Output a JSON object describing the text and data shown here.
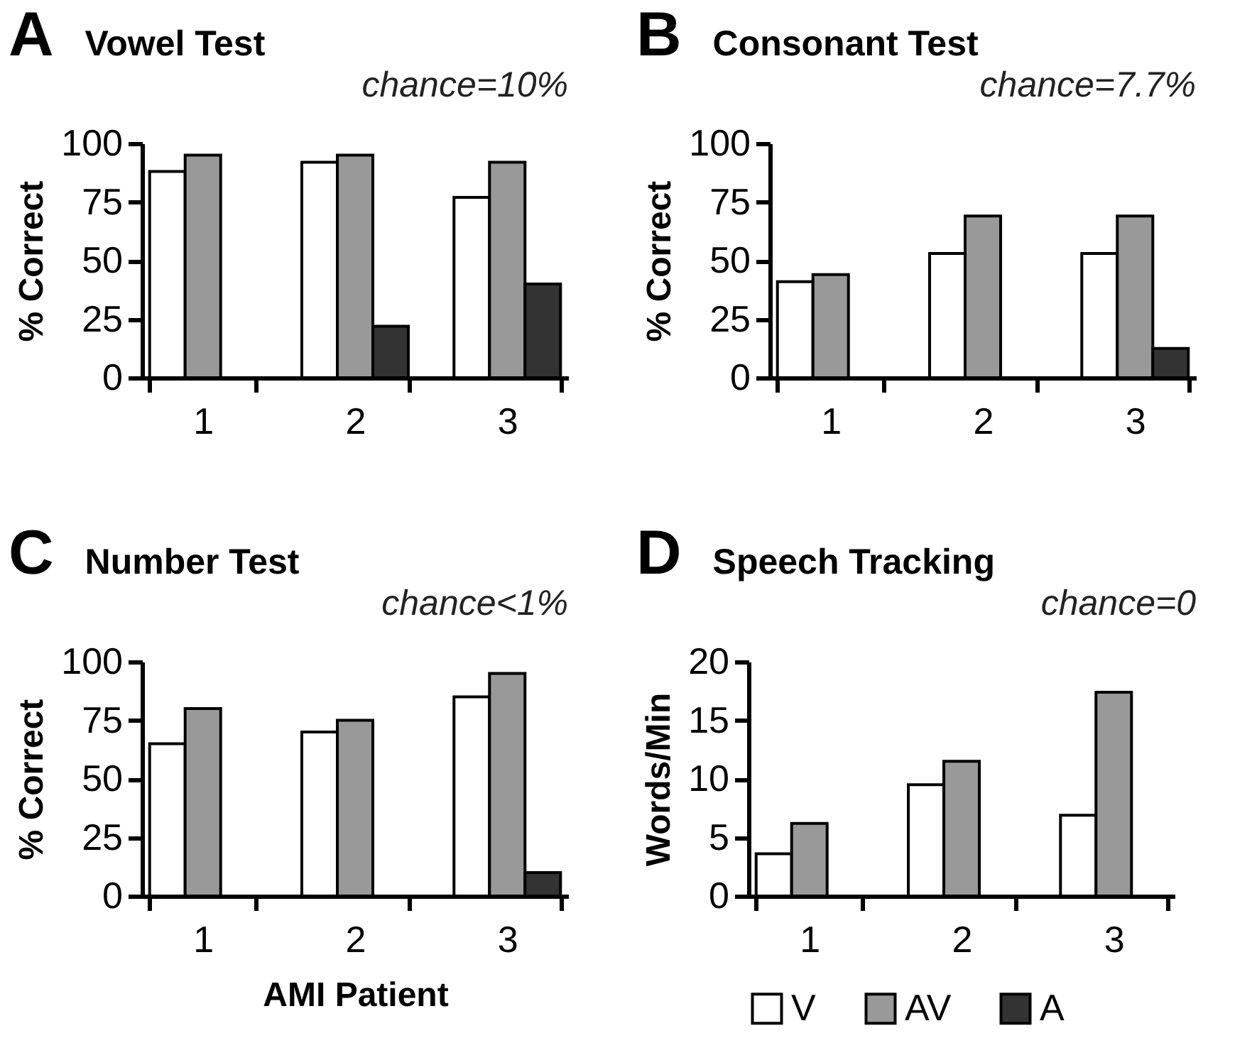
{
  "chart_data": [
    {
      "type": "bar",
      "title": "Vowel Test",
      "subtitle": "chance=10%",
      "annotations": [
        "A"
      ],
      "ylabel": "% Correct",
      "categories": [
        "1",
        "2",
        "3"
      ],
      "ylim": [
        0,
        100
      ],
      "yticks": [
        0,
        25,
        50,
        75,
        100
      ],
      "grid": false,
      "legend": false,
      "series": [
        {
          "color": "#ffffff",
          "values": [
            88,
            92,
            77
          ]
        },
        {
          "color": "#999999",
          "values": [
            95,
            95,
            92
          ]
        },
        {
          "color": "#333333",
          "values": [
            null,
            22,
            40
          ]
        }
      ]
    },
    {
      "type": "bar",
      "title": "Consonant Test",
      "subtitle": "chance=7.7%",
      "annotations": [
        "B"
      ],
      "ylabel": "% Correct",
      "categories": [
        "1",
        "2",
        "3"
      ],
      "ylim": [
        0,
        100
      ],
      "yticks": [
        0,
        25,
        50,
        75,
        100
      ],
      "grid": false,
      "legend": false,
      "series": [
        {
          "color": "#ffffff",
          "values": [
            41,
            53,
            53
          ]
        },
        {
          "color": "#999999",
          "values": [
            44,
            69,
            69
          ]
        },
        {
          "color": "#333333",
          "values": [
            null,
            null,
            12.5
          ]
        }
      ]
    },
    {
      "type": "bar",
      "title": "Number Test",
      "subtitle": "chance<1%",
      "annotations": [
        "C"
      ],
      "ylabel": "% Correct",
      "xlabel": "AMI Patient",
      "categories": [
        "1",
        "2",
        "3"
      ],
      "ylim": [
        0,
        100
      ],
      "yticks": [
        0,
        25,
        50,
        75,
        100
      ],
      "grid": false,
      "legend": false,
      "series": [
        {
          "color": "#ffffff",
          "values": [
            65,
            70,
            85
          ]
        },
        {
          "color": "#999999",
          "values": [
            80,
            75,
            95
          ]
        },
        {
          "color": "#333333",
          "values": [
            null,
            null,
            10
          ]
        }
      ]
    },
    {
      "type": "bar",
      "title": "Speech Tracking",
      "subtitle": "chance=0",
      "annotations": [
        "D"
      ],
      "ylabel": "Words/Min",
      "categories": [
        "1",
        "2",
        "3"
      ],
      "ylim": [
        0,
        20
      ],
      "yticks": [
        0,
        5,
        10,
        15,
        20
      ],
      "grid": false,
      "legend": "bottom",
      "series": [
        {
          "name": "V",
          "color": "#ffffff",
          "values": [
            3.6,
            9.5,
            6.9
          ]
        },
        {
          "name": "AV",
          "color": "#999999",
          "values": [
            6.2,
            11.5,
            17.4
          ]
        },
        {
          "name": "A",
          "color": "#333333",
          "values": [
            null,
            null,
            null
          ]
        }
      ]
    }
  ]
}
